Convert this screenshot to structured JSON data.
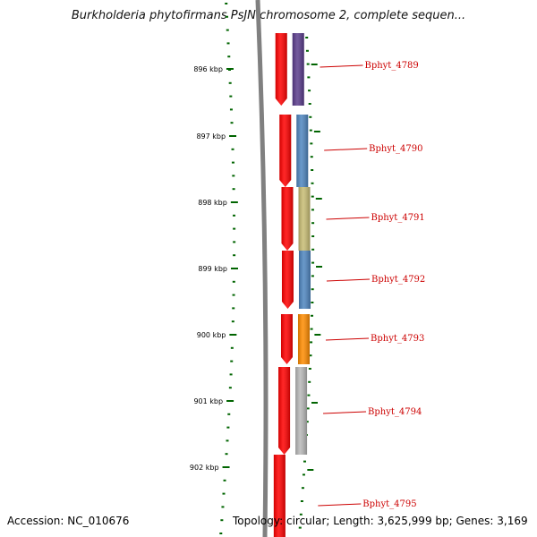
{
  "title": "Burkholderia phytofirmans PsJN chromosome 2, complete sequen...",
  "footer": {
    "accession": "Accession: NC_010676",
    "topology": "Topology: circular; Length: 3,625,999 bp; Genes: 3,169"
  },
  "colors": {
    "backbone": "#808080",
    "cds_strand": "#ff0000",
    "ruler": "#006400",
    "label": "#cc0000"
  },
  "ticks": [
    {
      "label": "896 kbp"
    },
    {
      "label": "897 kbp"
    },
    {
      "label": "898 kbp"
    },
    {
      "label": "899 kbp"
    },
    {
      "label": "900 kbp"
    },
    {
      "label": "901 kbp"
    },
    {
      "label": "902 kbp"
    }
  ],
  "genes": [
    {
      "name": "Bphyt_4789",
      "color": "#5a3c8c"
    },
    {
      "name": "Bphyt_4790",
      "color": "#4f86c0"
    },
    {
      "name": "Bphyt_4791",
      "color": "#c8bd74"
    },
    {
      "name": "Bphyt_4792",
      "color": "#4f86c0"
    },
    {
      "name": "Bphyt_4793",
      "color": "#ff8c00"
    },
    {
      "name": "Bphyt_4794",
      "color": "#b8b8b8"
    },
    {
      "name": "Bphyt_4795",
      "color": "#ff0000"
    }
  ]
}
